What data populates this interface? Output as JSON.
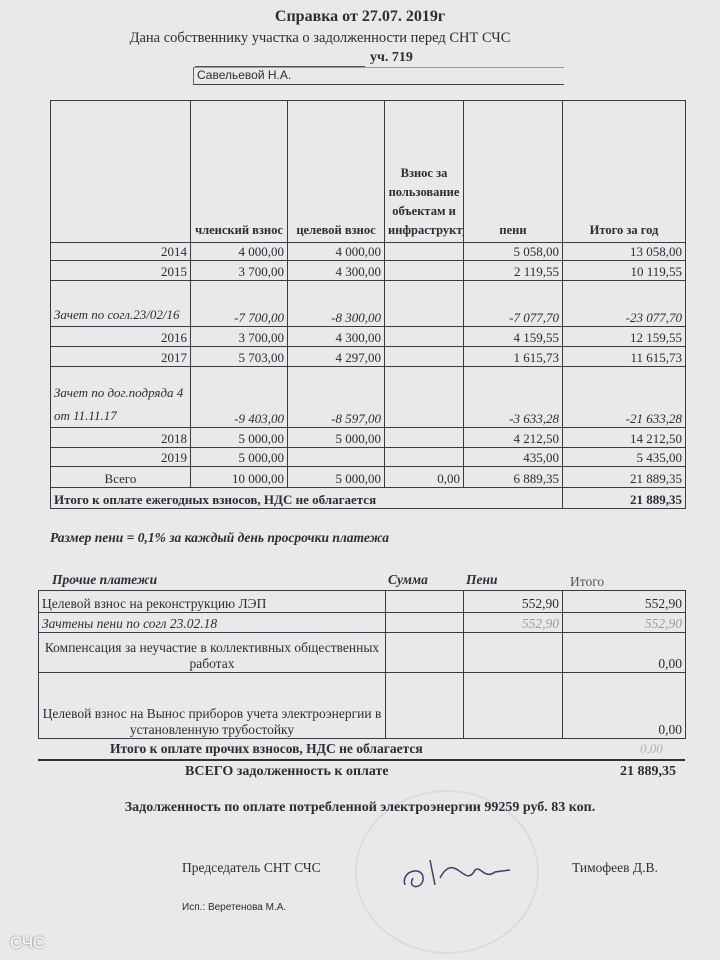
{
  "header": {
    "title": "Справка  от  27.07. 2019г",
    "subtitle": "Дана собственнику участка о задолженности перед СНТ СЧС",
    "plot": "уч. 719",
    "owner": "Савельевой Н.А."
  },
  "annual": {
    "columns": [
      "",
      "членский взнос",
      "целевой взнос",
      "Взнос за пользование объектам и инфраструктуры",
      "пени",
      "Итого за год"
    ],
    "rows": [
      {
        "label": "2014",
        "member": "4 000,00",
        "target": "4 000,00",
        "infra": "",
        "penalty": "5 058,00",
        "total": "13 058,00"
      },
      {
        "label": "2015",
        "member": "3 700,00",
        "target": "4 300,00",
        "infra": "",
        "penalty": "2 119,55",
        "total": "10 119,55"
      },
      {
        "label": "Зачет по согл.23/02/16",
        "member": "-7 700,00",
        "target": "-8 300,00",
        "infra": "",
        "penalty": "-7 077,70",
        "total": "-23 077,70"
      },
      {
        "label": "2016",
        "member": "3 700,00",
        "target": "4 300,00",
        "infra": "",
        "penalty": "4 159,55",
        "total": "12 159,55"
      },
      {
        "label": "2017",
        "member": "5 703,00",
        "target": "4 297,00",
        "infra": "",
        "penalty": "1 615,73",
        "total": "11 615,73"
      },
      {
        "label": "Зачет по дог.подряда 4 от 11.11.17",
        "member": "-9 403,00",
        "target": "-8 597,00",
        "infra": "",
        "penalty": "-3 633,28",
        "total": "-21 633,28"
      },
      {
        "label": "2018",
        "member": "5 000,00",
        "target": "5 000,00",
        "infra": "",
        "penalty": "4 212,50",
        "total": "14 212,50"
      },
      {
        "label": "2019",
        "member": "5 000,00",
        "target": "",
        "infra": "",
        "penalty": "435,00",
        "total": "5 435,00"
      },
      {
        "label": "Всего",
        "member": "10 000,00",
        "target": "5 000,00",
        "infra": "0,00",
        "penalty": "6 889,35",
        "total": "21 889,35"
      }
    ],
    "summary_label": "Итого к оплате ежегодных взносов, НДС не облагается",
    "summary_value": "21 889,35"
  },
  "penalty_note": "Размер пени = 0,1% за каждый день просрочки платежа",
  "other": {
    "title": "Прочие платежи",
    "col_sum": "Сумма",
    "col_penalty": "Пени",
    "col_total": "Итого",
    "rows": [
      {
        "label": "Целевой взнос на реконструкцию ЛЭП",
        "sum": "",
        "penalty": "552,90",
        "total": "552,90"
      },
      {
        "label": "Зачтены пени  по согл 23.02.18",
        "sum": "",
        "penalty": "552,90",
        "total": "552,90"
      },
      {
        "label": "Компенсация за неучастие в коллективных общественных  работах",
        "sum": "",
        "penalty": "",
        "total": "0,00"
      },
      {
        "label": "Целевой взнос на Вынос приборов учета электроэнергии в установленную трубостойку",
        "sum": "",
        "penalty": "",
        "total": "0,00"
      }
    ],
    "summary_label": "Итого к оплате прочих взносов, НДС не облагается",
    "summary_value": "0,00"
  },
  "grand": {
    "label": "ВСЕГО задолженность к оплате",
    "value": "21 889,35"
  },
  "electricity": "Задолженность по оплате потребленной электроэнергии 99259 руб. 83 коп.",
  "footer": {
    "chair": "Председатель СНТ СЧС",
    "name": "Тимофеев Д.В.",
    "executor": "Исп.: Веретенова М.А."
  },
  "watermark": "СЧС"
}
